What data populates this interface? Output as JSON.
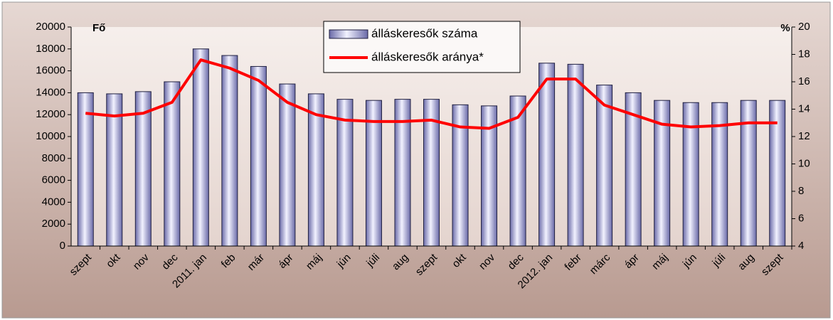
{
  "chart_data": {
    "type": "bar",
    "categories": [
      "szept",
      "okt",
      "nov",
      "dec",
      "2011. jan",
      "feb",
      "már",
      "ápr",
      "máj",
      "jún",
      "júli",
      "aug",
      "szept",
      "okt",
      "nov",
      "dec",
      "2012. jan",
      "febr",
      "márc",
      "ápr",
      "máj",
      "jún",
      "júli",
      "aug",
      "szept"
    ],
    "series": [
      {
        "name": "álláskeresők száma",
        "type": "bar",
        "color": "#b8b8e0",
        "values": [
          14000,
          13900,
          14100,
          15000,
          18000,
          17400,
          16400,
          14800,
          13900,
          13400,
          13300,
          13400,
          13400,
          12900,
          12800,
          13700,
          16700,
          16600,
          14700,
          14000,
          13300,
          13100,
          13100,
          13300,
          13300
        ]
      },
      {
        "name": "álláskeresők aránya*",
        "type": "line",
        "axis": "y2",
        "color": "#ff0000",
        "values": [
          13.7,
          13.5,
          13.7,
          14.5,
          17.6,
          17.0,
          16.1,
          14.5,
          13.6,
          13.2,
          13.1,
          13.1,
          13.2,
          12.7,
          12.6,
          13.4,
          16.2,
          16.2,
          14.3,
          13.6,
          12.9,
          12.7,
          12.8,
          13.0,
          13.0
        ]
      }
    ],
    "y_label": "Fő",
    "y2_label": "%",
    "ylim": [
      0,
      20000
    ],
    "yticks": [
      0,
      2000,
      4000,
      6000,
      8000,
      10000,
      12000,
      14000,
      16000,
      18000,
      20000
    ],
    "y2lim": [
      4,
      20
    ],
    "y2ticks": [
      4,
      6,
      8,
      10,
      12,
      14,
      16,
      18,
      20
    ]
  }
}
